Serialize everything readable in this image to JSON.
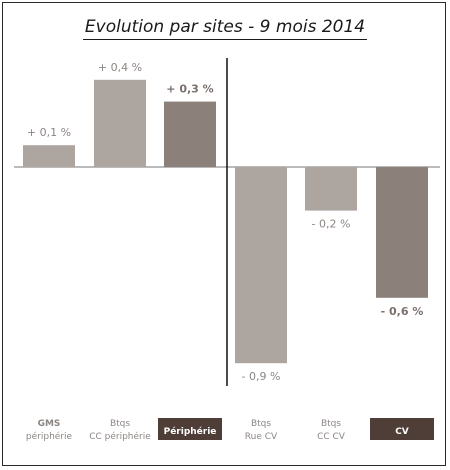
{
  "chart_data": {
    "type": "bar",
    "title": "Evolution par sites - 9 mois 2014",
    "xlabel": "",
    "ylabel": "",
    "ylim": [
      -0.9,
      0.4
    ],
    "grid": false,
    "legend": "none",
    "categories": [
      [
        "GMS",
        "périphérie"
      ],
      [
        "Btqs",
        "CC périphérie"
      ],
      [
        "Périphérie"
      ],
      [
        "Btqs",
        "Rue CV"
      ],
      [
        "Btqs",
        "CC CV"
      ],
      [
        "CV"
      ]
    ],
    "values": [
      0.1,
      0.4,
      0.3,
      -0.9,
      -0.2,
      -0.6
    ],
    "value_labels": [
      "+ 0,1 %",
      "+ 0,4 %",
      "+ 0,3 %",
      "- 0,9 %",
      "- 0,2 %",
      "- 0,6 %"
    ],
    "highlighted": [
      false,
      false,
      true,
      false,
      false,
      true
    ],
    "colors": {
      "light_bar": "#ada59f",
      "dark_bar": "#8b807a",
      "highlight_label_bg": "#4e3e37",
      "label_text": "#8c8683",
      "axis": "#777777",
      "divider": "#111111"
    }
  }
}
